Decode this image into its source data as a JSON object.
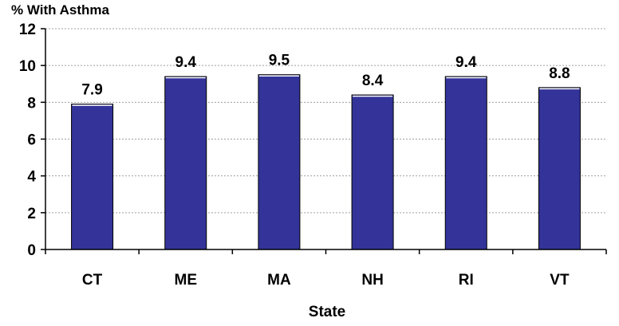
{
  "chart_data": {
    "type": "bar",
    "title": "",
    "xlabel": "State",
    "ylabel": "% With Asthma",
    "categories": [
      "CT",
      "ME",
      "MA",
      "NH",
      "RI",
      "VT"
    ],
    "series": [
      {
        "values": [
          7.9,
          9.4,
          9.5,
          8.4,
          9.4,
          8.8
        ]
      }
    ],
    "data_labels": [
      "7.9",
      "9.4",
      "9.5",
      "8.4",
      "9.4",
      "8.8"
    ],
    "ylim": [
      0,
      12
    ],
    "yticks": [
      0,
      2,
      4,
      6,
      8,
      10,
      12
    ],
    "ytick_labels": [
      "0",
      "2",
      "4",
      "6",
      "8",
      "10",
      "12"
    ],
    "grid": true,
    "legend": "none",
    "colors": {
      "bar": "#333399",
      "bar_edge": "#000000",
      "grid": "#a0a0a0",
      "axis": "#000000"
    }
  }
}
